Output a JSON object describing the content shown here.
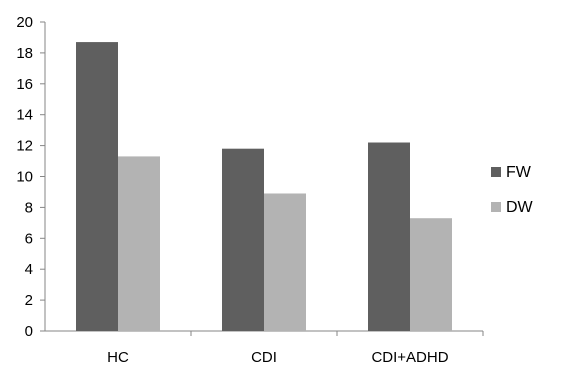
{
  "chart_data": {
    "type": "bar",
    "categories": [
      "HC",
      "CDI",
      "CDI+ADHD"
    ],
    "series": [
      {
        "name": "FW",
        "values": [
          18.7,
          11.8,
          12.2
        ],
        "color": "#5f5f5f"
      },
      {
        "name": "DW",
        "values": [
          11.3,
          8.9,
          7.3
        ],
        "color": "#b3b3b3"
      }
    ],
    "ylim": [
      0,
      20
    ],
    "yticks": [
      0,
      2,
      4,
      6,
      8,
      10,
      12,
      14,
      16,
      18,
      20
    ],
    "title": "",
    "xlabel": "",
    "ylabel": "",
    "grid": false,
    "legend_position": "right"
  }
}
